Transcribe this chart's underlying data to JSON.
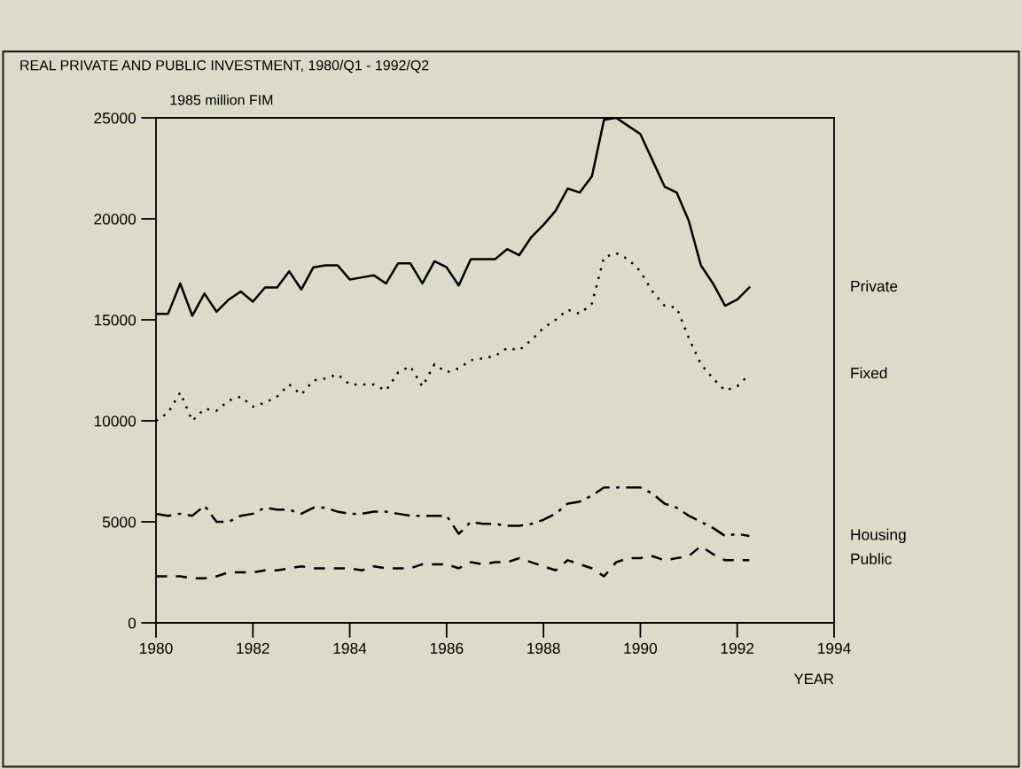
{
  "chart_data": {
    "type": "line",
    "title": "REAL PRIVATE AND PUBLIC INVESTMENT, 1980/Q1 - 1992/Q2",
    "ylabel": "1985 million FIM",
    "xlabel": "YEAR",
    "x": [
      1980,
      1980.25,
      1980.5,
      1980.75,
      1981,
      1981.25,
      1981.5,
      1981.75,
      1982,
      1982.25,
      1982.5,
      1982.75,
      1983,
      1983.25,
      1983.5,
      1983.75,
      1984,
      1984.25,
      1984.5,
      1984.75,
      1985,
      1985.25,
      1985.5,
      1985.75,
      1986,
      1986.25,
      1986.5,
      1986.75,
      1987,
      1987.25,
      1987.5,
      1987.75,
      1988,
      1988.25,
      1988.5,
      1988.75,
      1989,
      1989.25,
      1989.5,
      1989.75,
      1990,
      1990.25,
      1990.5,
      1990.75,
      1991,
      1991.25,
      1991.5,
      1991.75,
      1992,
      1992.25
    ],
    "series": [
      {
        "name": "Private",
        "color": "#000000",
        "line_style": "solid",
        "values": [
          15300,
          15300,
          16800,
          15200,
          16300,
          15400,
          16000,
          16400,
          15900,
          16600,
          16600,
          17400,
          16500,
          17600,
          17700,
          17700,
          17000,
          17100,
          17200,
          16800,
          17800,
          17800,
          16800,
          17900,
          17600,
          16700,
          18000,
          18000,
          18000,
          18500,
          18200,
          19100,
          19700,
          20400,
          21500,
          21300,
          22100,
          24900,
          25000,
          24600,
          24200,
          22900,
          21600,
          21300,
          19900,
          17700,
          16800,
          15700,
          16000,
          16600
        ]
      },
      {
        "name": "Fixed",
        "color": "#000000",
        "line_style": "dotted",
        "values": [
          10000,
          10400,
          11400,
          10000,
          10600,
          10500,
          11000,
          11200,
          10700,
          10900,
          11200,
          11800,
          11300,
          12000,
          12100,
          12300,
          11800,
          11800,
          11800,
          11500,
          12400,
          12700,
          11700,
          12800,
          12400,
          12600,
          13000,
          13100,
          13200,
          13600,
          13500,
          14000,
          14600,
          15000,
          15500,
          15300,
          15800,
          18100,
          18300,
          18000,
          17400,
          16400,
          15700,
          15600,
          14100,
          12800,
          12100,
          11500,
          11700,
          12300
        ]
      },
      {
        "name": "Housing",
        "color": "#000000",
        "line_style": "dashdot",
        "values": [
          5400,
          5300,
          5400,
          5300,
          5800,
          5000,
          5000,
          5300,
          5400,
          5700,
          5600,
          5600,
          5400,
          5700,
          5700,
          5500,
          5400,
          5400,
          5500,
          5500,
          5400,
          5300,
          5300,
          5300,
          5300,
          4400,
          5000,
          4900,
          4900,
          4800,
          4800,
          4900,
          5100,
          5400,
          5900,
          6000,
          6300,
          6700,
          6700,
          6700,
          6700,
          6400,
          5900,
          5700,
          5300,
          5000,
          4700,
          4300,
          4400,
          4300
        ]
      },
      {
        "name": "Public",
        "color": "#000000",
        "line_style": "dashed",
        "values": [
          2300,
          2300,
          2300,
          2200,
          2200,
          2300,
          2500,
          2500,
          2500,
          2600,
          2600,
          2700,
          2800,
          2700,
          2700,
          2700,
          2700,
          2600,
          2800,
          2700,
          2700,
          2700,
          2900,
          2900,
          2900,
          2700,
          3000,
          2900,
          3000,
          3000,
          3200,
          3000,
          2800,
          2600,
          3100,
          2900,
          2700,
          2300,
          3000,
          3200,
          3200,
          3300,
          3100,
          3200,
          3300,
          3800,
          3400,
          3100,
          3100,
          3100
        ]
      }
    ],
    "xlim": [
      1980,
      1994
    ],
    "ylim": [
      0,
      25000
    ],
    "xticks": [
      1980,
      1982,
      1984,
      1986,
      1988,
      1990,
      1992,
      1994
    ],
    "yticks": [
      0,
      5000,
      10000,
      15000,
      20000,
      25000
    ],
    "marker": "none",
    "legend": false,
    "grid": false
  }
}
